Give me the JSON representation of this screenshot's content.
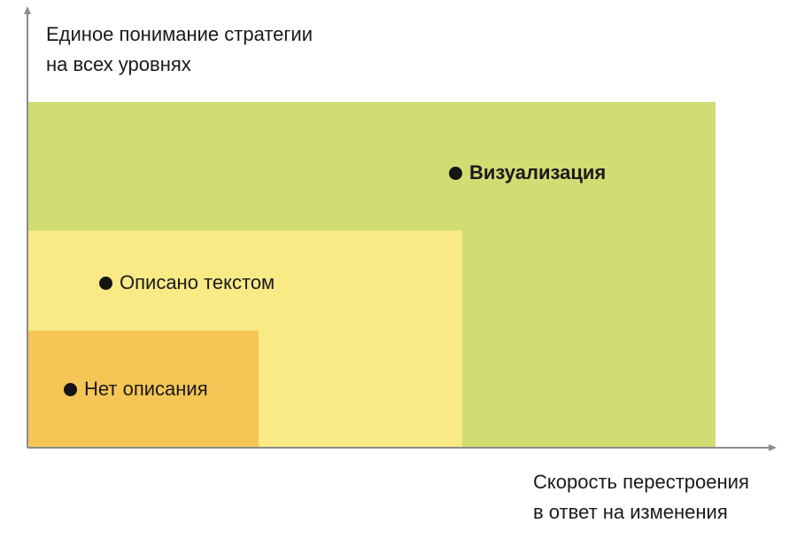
{
  "diagram": {
    "y_axis_label": [
      "Единое понимание стратегии",
      "на всех уровнях"
    ],
    "x_axis_label": [
      "Скорость перестроения",
      "в ответ на изменения"
    ],
    "levels": [
      {
        "id": "none",
        "label": "Нет описания",
        "emphasis": false
      },
      {
        "id": "text",
        "label": "Описано текстом",
        "emphasis": false
      },
      {
        "id": "visual",
        "label": "Визуализация",
        "emphasis": true
      }
    ]
  },
  "colors": {
    "axis": "#8c8c8c",
    "zone_visual": "#d1dc72",
    "zone_text": "#f9ea86",
    "zone_none": "#f5c655",
    "dot": "#141414",
    "text": "#1a1a1a"
  }
}
